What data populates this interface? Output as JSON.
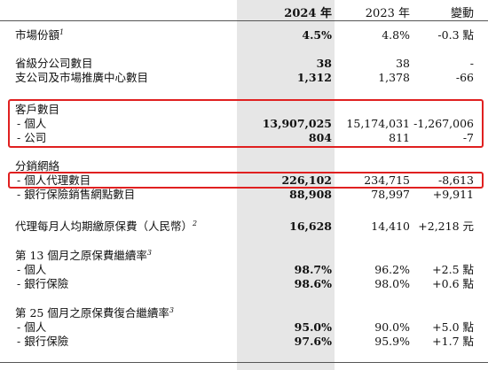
{
  "header": {
    "col_2024": "2024 年",
    "col_2023": "2023 年",
    "col_change": "變動"
  },
  "rows": [
    {
      "label": "市場份額",
      "sup": "1",
      "v2024": "4.5%",
      "v2023": "4.8%",
      "change": "-0.3 點"
    },
    {
      "label": "省級分公司數目",
      "v2024": "38",
      "v2023": "38",
      "change": "-"
    },
    {
      "label": "支公司及市場推廣中心數目",
      "v2024": "1,312",
      "v2023": "1,378",
      "change": "-66"
    },
    {
      "label": "客戶數目"
    },
    {
      "label": "- 個人",
      "v2024": "13,907,025",
      "v2023": "15,174,031",
      "change": "-1,267,006"
    },
    {
      "label": "- 公司",
      "v2024": "804",
      "v2023": "811",
      "change": "-7"
    },
    {
      "label": "分銷網絡"
    },
    {
      "label": "- 個人代理數目",
      "v2024": "226,102",
      "v2023": "234,715",
      "change": "-8,613"
    },
    {
      "label": "- 銀行保險銷售網點數目",
      "v2024": "88,908",
      "v2023": "78,997",
      "change": "+9,911"
    },
    {
      "label": "代理每月人均期繳原保費（人民幣）",
      "sup": "2",
      "v2024": "16,628",
      "v2023": "14,410",
      "change": "+2,218 元"
    },
    {
      "label": "第 13 個月之原保費繼續率",
      "sup": "3"
    },
    {
      "label": "- 個人",
      "v2024": "98.7%",
      "v2023": "96.2%",
      "change": "+2.5 點"
    },
    {
      "label": "- 銀行保險",
      "v2024": "98.6%",
      "v2023": "98.0%",
      "change": "+0.6 點"
    },
    {
      "label": "第 25 個月之原保費復合繼續率",
      "sup": "3"
    },
    {
      "label": "- 個人",
      "v2024": "95.0%",
      "v2023": "90.0%",
      "change": "+5.0 點"
    },
    {
      "label": "- 銀行保險",
      "v2024": "97.6%",
      "v2023": "95.9%",
      "change": "+1.7 點"
    }
  ],
  "colors": {
    "highlight_box": "#e02020",
    "shade_2024": "#e6e6e6"
  }
}
